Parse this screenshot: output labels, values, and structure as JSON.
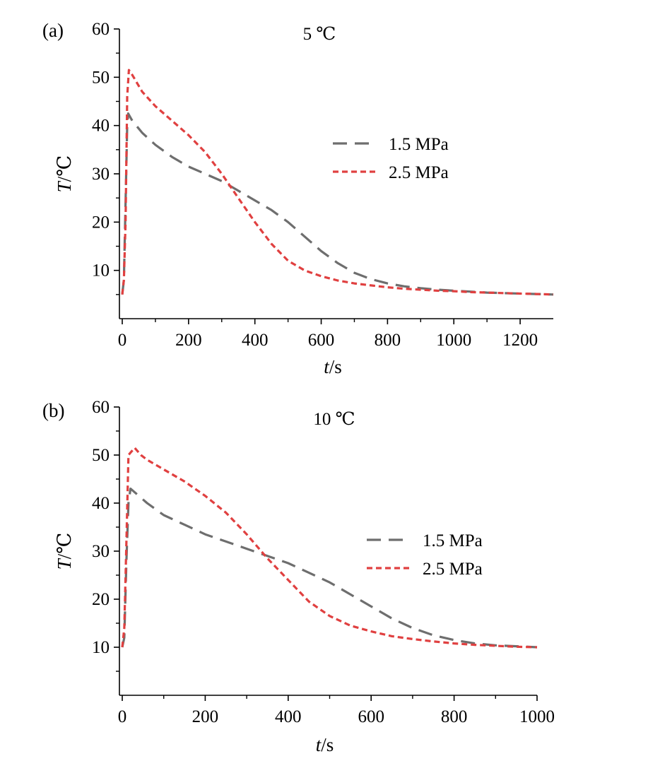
{
  "chart_data": [
    {
      "panel_label": "(a)",
      "type": "line",
      "title": "5 ℃",
      "xlabel": {
        "italic": "t",
        "rest": "/s"
      },
      "ylabel": {
        "italic": "T",
        "rest": "/℃"
      },
      "xlim": [
        0,
        1300
      ],
      "ylim": [
        0,
        60
      ],
      "xticks": [
        0,
        200,
        400,
        600,
        800,
        1000,
        1200
      ],
      "yticks": [
        10,
        20,
        30,
        40,
        50,
        60
      ],
      "ytick_labels_shown": [
        10,
        20,
        30,
        40,
        50,
        60
      ],
      "legend_position": "right-middle",
      "series": [
        {
          "name": "1.5 MPa",
          "color": "#6e6e6e",
          "dash": "long-dash",
          "points": [
            [
              0,
              5
            ],
            [
              5,
              8
            ],
            [
              10,
              24
            ],
            [
              15,
              40
            ],
            [
              18,
              42.5
            ],
            [
              30,
              41
            ],
            [
              60,
              38.5
            ],
            [
              100,
              36
            ],
            [
              150,
              33.5
            ],
            [
              200,
              31.5
            ],
            [
              250,
              30
            ],
            [
              300,
              28.5
            ],
            [
              350,
              26.5
            ],
            [
              400,
              24.5
            ],
            [
              450,
              22.5
            ],
            [
              500,
              20
            ],
            [
              550,
              17
            ],
            [
              600,
              14
            ],
            [
              650,
              11.5
            ],
            [
              700,
              9.5
            ],
            [
              750,
              8.2
            ],
            [
              800,
              7.3
            ],
            [
              850,
              6.7
            ],
            [
              900,
              6.3
            ],
            [
              950,
              6
            ],
            [
              1000,
              5.8
            ],
            [
              1050,
              5.6
            ],
            [
              1100,
              5.4
            ],
            [
              1150,
              5.3
            ],
            [
              1200,
              5.2
            ],
            [
              1250,
              5.1
            ],
            [
              1300,
              5
            ]
          ]
        },
        {
          "name": "2.5 MPa",
          "color": "#e04040",
          "dash": "short-dash",
          "points": [
            [
              0,
              5
            ],
            [
              5,
              8
            ],
            [
              10,
              20
            ],
            [
              15,
              46
            ],
            [
              20,
              51.5
            ],
            [
              30,
              50.5
            ],
            [
              60,
              47
            ],
            [
              100,
              44
            ],
            [
              150,
              41
            ],
            [
              200,
              38
            ],
            [
              250,
              34.5
            ],
            [
              300,
              30
            ],
            [
              350,
              25
            ],
            [
              400,
              20
            ],
            [
              450,
              15.5
            ],
            [
              500,
              12
            ],
            [
              550,
              10
            ],
            [
              600,
              8.8
            ],
            [
              650,
              7.9
            ],
            [
              700,
              7.3
            ],
            [
              750,
              6.9
            ],
            [
              800,
              6.5
            ],
            [
              850,
              6.2
            ],
            [
              900,
              6
            ],
            [
              950,
              5.8
            ],
            [
              1000,
              5.7
            ],
            [
              1050,
              5.5
            ],
            [
              1100,
              5.4
            ],
            [
              1150,
              5.3
            ],
            [
              1200,
              5.2
            ],
            [
              1250,
              5.1
            ],
            [
              1300,
              5
            ]
          ]
        }
      ]
    },
    {
      "panel_label": "(b)",
      "type": "line",
      "title": "10 ℃",
      "xlabel": {
        "italic": "t",
        "rest": "/s"
      },
      "ylabel": {
        "italic": "T",
        "rest": "/℃"
      },
      "xlim": [
        0,
        1000
      ],
      "ylim": [
        0,
        60
      ],
      "xticks": [
        0,
        200,
        400,
        600,
        800,
        1000
      ],
      "yticks": [
        10,
        20,
        30,
        40,
        50,
        60
      ],
      "ytick_labels_shown": [
        10,
        20,
        30,
        40,
        50,
        60
      ],
      "legend_position": "right-middle",
      "series": [
        {
          "name": "1.5 MPa",
          "color": "#6e6e6e",
          "dash": "long-dash",
          "points": [
            [
              0,
              10
            ],
            [
              5,
              12
            ],
            [
              10,
              28
            ],
            [
              15,
              40
            ],
            [
              20,
              43
            ],
            [
              40,
              41.5
            ],
            [
              60,
              40
            ],
            [
              100,
              37.5
            ],
            [
              150,
              35.5
            ],
            [
              200,
              33.5
            ],
            [
              250,
              32
            ],
            [
              300,
              30.5
            ],
            [
              350,
              29
            ],
            [
              400,
              27.5
            ],
            [
              450,
              25.5
            ],
            [
              500,
              23.5
            ],
            [
              550,
              21
            ],
            [
              600,
              18.5
            ],
            [
              650,
              16
            ],
            [
              700,
              14
            ],
            [
              750,
              12.5
            ],
            [
              800,
              11.5
            ],
            [
              850,
              10.8
            ],
            [
              900,
              10.4
            ],
            [
              950,
              10.2
            ],
            [
              1000,
              10
            ]
          ]
        },
        {
          "name": "2.5 MPa",
          "color": "#e04040",
          "dash": "short-dash",
          "points": [
            [
              0,
              10
            ],
            [
              5,
              14
            ],
            [
              10,
              32
            ],
            [
              15,
              50
            ],
            [
              20,
              50.5
            ],
            [
              30,
              51.5
            ],
            [
              45,
              50
            ],
            [
              60,
              49
            ],
            [
              100,
              47
            ],
            [
              150,
              44.5
            ],
            [
              200,
              41.5
            ],
            [
              250,
              38
            ],
            [
              300,
              33.5
            ],
            [
              350,
              28.5
            ],
            [
              400,
              24
            ],
            [
              450,
              19.5
            ],
            [
              500,
              16.5
            ],
            [
              550,
              14.5
            ],
            [
              600,
              13.3
            ],
            [
              650,
              12.3
            ],
            [
              700,
              11.7
            ],
            [
              750,
              11.2
            ],
            [
              800,
              10.8
            ],
            [
              850,
              10.5
            ],
            [
              900,
              10.3
            ],
            [
              950,
              10.1
            ],
            [
              1000,
              10
            ]
          ]
        }
      ]
    }
  ]
}
